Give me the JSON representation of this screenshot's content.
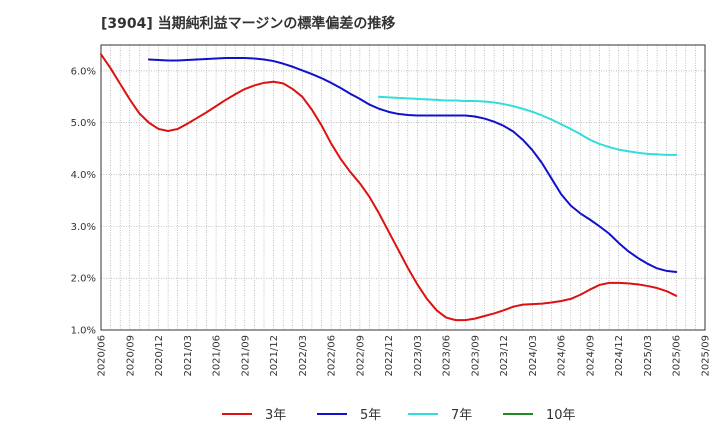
{
  "chart_data": {
    "type": "line",
    "title": "[3904]  当期純利益マージンの標準偏差の推移",
    "xlabel": "",
    "ylabel": "",
    "x_tick_labels": [
      "2020/06",
      "2020/09",
      "2020/12",
      "2021/03",
      "2021/06",
      "2021/09",
      "2021/12",
      "2022/03",
      "2022/06",
      "2022/09",
      "2022/12",
      "2023/03",
      "2023/06",
      "2023/09",
      "2023/12",
      "2024/03",
      "2024/06",
      "2024/09",
      "2024/12",
      "2025/03",
      "2025/06",
      "2025/09"
    ],
    "y_tick_labels": [
      "1.0%",
      "2.0%",
      "3.0%",
      "4.0%",
      "5.0%",
      "6.0%"
    ],
    "ylim": [
      1.0,
      6.5
    ],
    "y_ticks": [
      1.0,
      2.0,
      3.0,
      4.0,
      5.0,
      6.0
    ],
    "grid": true,
    "legend_position": "bottom",
    "series": [
      {
        "name": "3年",
        "color": "#dd1111",
        "points": [
          [
            "2020/06",
            6.32
          ],
          [
            "2020/07",
            6.05
          ],
          [
            "2020/08",
            5.75
          ],
          [
            "2020/09",
            5.45
          ],
          [
            "2020/10",
            5.18
          ],
          [
            "2020/11",
            5.0
          ],
          [
            "2020/12",
            4.88
          ],
          [
            "2021/01",
            4.84
          ],
          [
            "2021/02",
            4.88
          ],
          [
            "2021/03",
            4.98
          ],
          [
            "2021/04",
            5.09
          ],
          [
            "2021/05",
            5.2
          ],
          [
            "2021/06",
            5.32
          ],
          [
            "2021/07",
            5.44
          ],
          [
            "2021/08",
            5.55
          ],
          [
            "2021/09",
            5.65
          ],
          [
            "2021/10",
            5.72
          ],
          [
            "2021/11",
            5.77
          ],
          [
            "2021/12",
            5.79
          ],
          [
            "2022/01",
            5.76
          ],
          [
            "2022/02",
            5.65
          ],
          [
            "2022/03",
            5.5
          ],
          [
            "2022/04",
            5.25
          ],
          [
            "2022/05",
            4.95
          ],
          [
            "2022/06",
            4.6
          ],
          [
            "2022/07",
            4.3
          ],
          [
            "2022/08",
            4.05
          ],
          [
            "2022/09",
            3.83
          ],
          [
            "2022/10",
            3.57
          ],
          [
            "2022/11",
            3.25
          ],
          [
            "2022/12",
            2.9
          ],
          [
            "2023/01",
            2.55
          ],
          [
            "2023/02",
            2.2
          ],
          [
            "2023/03",
            1.88
          ],
          [
            "2023/04",
            1.6
          ],
          [
            "2023/05",
            1.38
          ],
          [
            "2023/06",
            1.24
          ],
          [
            "2023/07",
            1.19
          ],
          [
            "2023/08",
            1.19
          ],
          [
            "2023/09",
            1.22
          ],
          [
            "2023/10",
            1.27
          ],
          [
            "2023/11",
            1.32
          ],
          [
            "2023/12",
            1.38
          ],
          [
            "2024/01",
            1.45
          ],
          [
            "2024/02",
            1.49
          ],
          [
            "2024/03",
            1.5
          ],
          [
            "2024/04",
            1.51
          ],
          [
            "2024/05",
            1.53
          ],
          [
            "2024/06",
            1.56
          ],
          [
            "2024/07",
            1.6
          ],
          [
            "2024/08",
            1.68
          ],
          [
            "2024/09",
            1.78
          ],
          [
            "2024/10",
            1.87
          ],
          [
            "2024/11",
            1.91
          ],
          [
            "2024/12",
            1.91
          ],
          [
            "2025/01",
            1.9
          ],
          [
            "2025/02",
            1.88
          ],
          [
            "2025/03",
            1.85
          ],
          [
            "2025/04",
            1.81
          ],
          [
            "2025/05",
            1.75
          ],
          [
            "2025/06",
            1.66
          ]
        ]
      },
      {
        "name": "5年",
        "color": "#1111cc",
        "points": [
          [
            "2020/11",
            6.22
          ],
          [
            "2020/12",
            6.21
          ],
          [
            "2021/01",
            6.2
          ],
          [
            "2021/02",
            6.2
          ],
          [
            "2021/03",
            6.21
          ],
          [
            "2021/04",
            6.22
          ],
          [
            "2021/05",
            6.23
          ],
          [
            "2021/06",
            6.24
          ],
          [
            "2021/07",
            6.25
          ],
          [
            "2021/08",
            6.25
          ],
          [
            "2021/09",
            6.25
          ],
          [
            "2021/10",
            6.24
          ],
          [
            "2021/11",
            6.22
          ],
          [
            "2021/12",
            6.19
          ],
          [
            "2022/01",
            6.14
          ],
          [
            "2022/02",
            6.08
          ],
          [
            "2022/03",
            6.01
          ],
          [
            "2022/04",
            5.94
          ],
          [
            "2022/05",
            5.86
          ],
          [
            "2022/06",
            5.77
          ],
          [
            "2022/07",
            5.67
          ],
          [
            "2022/08",
            5.56
          ],
          [
            "2022/09",
            5.46
          ],
          [
            "2022/10",
            5.35
          ],
          [
            "2022/11",
            5.27
          ],
          [
            "2022/12",
            5.21
          ],
          [
            "2023/01",
            5.17
          ],
          [
            "2023/02",
            5.15
          ],
          [
            "2023/03",
            5.14
          ],
          [
            "2023/04",
            5.14
          ],
          [
            "2023/05",
            5.14
          ],
          [
            "2023/06",
            5.14
          ],
          [
            "2023/07",
            5.14
          ],
          [
            "2023/08",
            5.14
          ],
          [
            "2023/09",
            5.12
          ],
          [
            "2023/10",
            5.08
          ],
          [
            "2023/11",
            5.02
          ],
          [
            "2023/12",
            4.94
          ],
          [
            "2024/01",
            4.83
          ],
          [
            "2024/02",
            4.67
          ],
          [
            "2024/03",
            4.47
          ],
          [
            "2024/04",
            4.22
          ],
          [
            "2024/05",
            3.92
          ],
          [
            "2024/06",
            3.62
          ],
          [
            "2024/07",
            3.4
          ],
          [
            "2024/08",
            3.25
          ],
          [
            "2024/09",
            3.13
          ],
          [
            "2024/10",
            3.0
          ],
          [
            "2024/11",
            2.86
          ],
          [
            "2024/12",
            2.68
          ],
          [
            "2025/01",
            2.52
          ],
          [
            "2025/02",
            2.39
          ],
          [
            "2025/03",
            2.28
          ],
          [
            "2025/04",
            2.19
          ],
          [
            "2025/05",
            2.14
          ],
          [
            "2025/06",
            2.12
          ]
        ]
      },
      {
        "name": "7年",
        "color": "#33dddd",
        "points": [
          [
            "2022/11",
            5.5
          ],
          [
            "2022/12",
            5.49
          ],
          [
            "2023/01",
            5.48
          ],
          [
            "2023/02",
            5.47
          ],
          [
            "2023/03",
            5.46
          ],
          [
            "2023/04",
            5.45
          ],
          [
            "2023/05",
            5.44
          ],
          [
            "2023/06",
            5.43
          ],
          [
            "2023/07",
            5.43
          ],
          [
            "2023/08",
            5.42
          ],
          [
            "2023/09",
            5.42
          ],
          [
            "2023/10",
            5.41
          ],
          [
            "2023/11",
            5.39
          ],
          [
            "2023/12",
            5.36
          ],
          [
            "2024/01",
            5.32
          ],
          [
            "2024/02",
            5.27
          ],
          [
            "2024/03",
            5.21
          ],
          [
            "2024/04",
            5.14
          ],
          [
            "2024/05",
            5.06
          ],
          [
            "2024/06",
            4.97
          ],
          [
            "2024/07",
            4.88
          ],
          [
            "2024/08",
            4.78
          ],
          [
            "2024/09",
            4.67
          ],
          [
            "2024/10",
            4.59
          ],
          [
            "2024/11",
            4.53
          ],
          [
            "2024/12",
            4.48
          ],
          [
            "2025/01",
            4.45
          ],
          [
            "2025/02",
            4.42
          ],
          [
            "2025/03",
            4.4
          ],
          [
            "2025/04",
            4.39
          ],
          [
            "2025/05",
            4.38
          ],
          [
            "2025/06",
            4.38
          ]
        ]
      },
      {
        "name": "10年",
        "color": "#228822",
        "points": []
      }
    ]
  }
}
